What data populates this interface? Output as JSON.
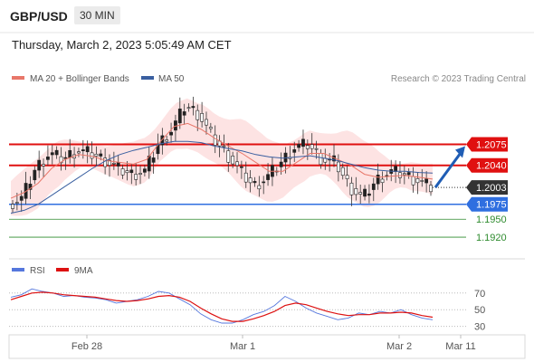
{
  "header": {
    "symbol": "GBP/USD",
    "timeframe": "30 MIN",
    "timestamp": "Thursday, March 2, 2023 5:05:49 AM CET"
  },
  "legend": {
    "ma20_label": "MA 20 + Bollinger Bands",
    "ma50_label": "MA 50",
    "research": "Research © 2023 Trading Central",
    "rsi_label": "RSI",
    "ma9_label": "9MA"
  },
  "colors": {
    "ma20": "#e8776a",
    "ma50": "#3a5fa0",
    "bollinger_fill": "#fde3e3",
    "resistance": "#e01010",
    "price_tag": "#333333",
    "pivot": "#2f6fe0",
    "support": "#2e8b2e",
    "arrow": "#1f5db5",
    "rsi": "#5577dd",
    "rsi_ma": "#dd1111"
  },
  "chart_data": [
    {
      "type": "candlestick",
      "x_ticks": [
        "Feb 28",
        "Mar 1",
        "Mar 2",
        "Mar 11"
      ],
      "ylim": [
        1.1905,
        1.2165
      ],
      "resistance_levels": [
        "1.2075",
        "1.2040"
      ],
      "current_price": "1.2003",
      "pivot": "1.1975",
      "support_levels": [
        "1.1950",
        "1.1920"
      ],
      "price_path": [
        1.1975,
        1.1985,
        1.2035,
        1.206,
        1.205,
        1.2065,
        1.206,
        1.205,
        1.2035,
        1.2025,
        1.203,
        1.2075,
        1.21,
        1.214,
        1.2125,
        1.2085,
        1.206,
        1.203,
        1.2005,
        1.202,
        1.2045,
        1.207,
        1.2075,
        1.205,
        1.2045,
        1.2005,
        1.1985,
        1.2015,
        1.203,
        1.2025,
        1.2015,
        1.2003
      ],
      "ma20_path": [
        1.1985,
        1.1995,
        1.201,
        1.2035,
        1.205,
        1.2058,
        1.2055,
        1.2048,
        1.2045,
        1.2042,
        1.205,
        1.208,
        1.2105,
        1.211,
        1.21,
        1.2085,
        1.2072,
        1.206,
        1.2045,
        1.203,
        1.203,
        1.2045,
        1.206,
        1.206,
        1.205,
        1.204,
        1.2025,
        1.202,
        1.2022,
        1.2023,
        1.202,
        1.2017
      ],
      "ma50_path": [
        1.196,
        1.1965,
        1.1975,
        1.199,
        1.2005,
        1.202,
        1.2035,
        1.2048,
        1.2058,
        1.2065,
        1.207,
        1.2076,
        1.208,
        1.208,
        1.2078,
        1.2072,
        1.2068,
        1.2064,
        1.2058,
        1.2054,
        1.2052,
        1.2054,
        1.2056,
        1.2052,
        1.2048,
        1.2042,
        1.2036,
        1.2032,
        1.203,
        1.203,
        1.2028,
        1.2027
      ],
      "arrow_target": 1.2075
    },
    {
      "type": "line",
      "name": "RSI panel",
      "y_ticks": [
        70,
        50,
        30
      ],
      "ylim": [
        22,
        85
      ],
      "series": [
        {
          "name": "RSI",
          "values": [
            65,
            68,
            75,
            72,
            70,
            66,
            67,
            65,
            64,
            62,
            58,
            60,
            62,
            66,
            72,
            70,
            63,
            56,
            45,
            38,
            34,
            34,
            38,
            44,
            48,
            55,
            66,
            60,
            52,
            46,
            42,
            38,
            40,
            46,
            44,
            48,
            46,
            50,
            44,
            40,
            38
          ]
        },
        {
          "name": "9MA",
          "values": [
            62,
            66,
            70,
            71,
            70,
            68,
            67,
            66,
            65,
            63,
            61,
            60,
            61,
            63,
            66,
            67,
            65,
            60,
            52,
            45,
            39,
            36,
            36,
            39,
            43,
            48,
            55,
            58,
            56,
            52,
            48,
            45,
            43,
            44,
            44,
            46,
            46,
            47,
            46,
            43,
            41
          ]
        }
      ]
    }
  ]
}
